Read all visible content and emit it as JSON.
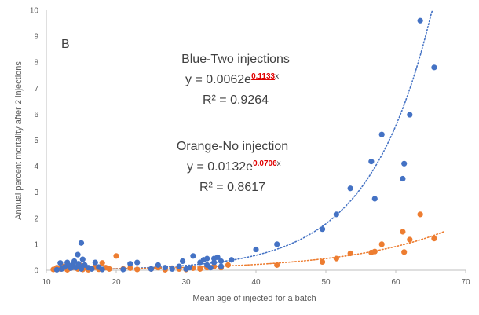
{
  "chart_data": {
    "type": "scatter",
    "panel_label": "B",
    "xlabel": "Mean age of injected for a batch",
    "ylabel": "Annual percent mortality after 2 injections",
    "xlim": [
      10,
      70
    ],
    "ylim": [
      0,
      10
    ],
    "x_ticks": [
      "10",
      "20",
      "30",
      "40",
      "50",
      "60",
      "70"
    ],
    "y_ticks": [
      "0",
      "1",
      "2",
      "3",
      "4",
      "5",
      "6",
      "7",
      "8",
      "9",
      "10"
    ],
    "grid": false,
    "series": [
      {
        "color": "#4472c4",
        "trend": {
          "type": "exponential",
          "a": 0.0062,
          "b": 0.1133
        },
        "points": [
          [
            11.5,
            0.02
          ],
          [
            12.0,
            0.28
          ],
          [
            12.2,
            0.05
          ],
          [
            12.6,
            0.12
          ],
          [
            13.0,
            0.3
          ],
          [
            13.2,
            0.18
          ],
          [
            13.5,
            0.08
          ],
          [
            13.8,
            0.22
          ],
          [
            14.0,
            0.35
          ],
          [
            14.2,
            0.1
          ],
          [
            14.5,
            0.6
          ],
          [
            14.6,
            0.25
          ],
          [
            14.8,
            0.15
          ],
          [
            15.0,
            0.05
          ],
          [
            15.0,
            1.05
          ],
          [
            15.2,
            0.42
          ],
          [
            15.5,
            0.2
          ],
          [
            16.0,
            0.1
          ],
          [
            16.5,
            0.05
          ],
          [
            17.0,
            0.3
          ],
          [
            17.5,
            0.12
          ],
          [
            18.0,
            0.03
          ],
          [
            21.0,
            0.03
          ],
          [
            22.0,
            0.25
          ],
          [
            23.0,
            0.3
          ],
          [
            25.0,
            0.05
          ],
          [
            26.0,
            0.2
          ],
          [
            27.0,
            0.1
          ],
          [
            28.0,
            0.05
          ],
          [
            29.0,
            0.15
          ],
          [
            29.5,
            0.35
          ],
          [
            30.0,
            0.05
          ],
          [
            30.5,
            0.1
          ],
          [
            31.0,
            0.55
          ],
          [
            32.0,
            0.3
          ],
          [
            32.5,
            0.4
          ],
          [
            33.0,
            0.45
          ],
          [
            33.0,
            0.2
          ],
          [
            33.5,
            0.1
          ],
          [
            34.0,
            0.45
          ],
          [
            34.0,
            0.3
          ],
          [
            34.5,
            0.5
          ],
          [
            35.0,
            0.35
          ],
          [
            35.0,
            0.15
          ],
          [
            36.5,
            0.4
          ],
          [
            40.0,
            0.8
          ],
          [
            43.0,
            1.0
          ],
          [
            49.5,
            1.58
          ],
          [
            51.5,
            2.15
          ],
          [
            53.5,
            3.15
          ],
          [
            56.5,
            4.18
          ],
          [
            57.0,
            2.75
          ],
          [
            58.0,
            5.22
          ],
          [
            61.0,
            3.52
          ],
          [
            61.2,
            4.1
          ],
          [
            62.0,
            5.98
          ],
          [
            63.5,
            9.6
          ],
          [
            65.5,
            7.8
          ]
        ]
      },
      {
        "color": "#ed7d31",
        "trend": {
          "type": "exponential",
          "a": 0.0132,
          "b": 0.0706
        },
        "points": [
          [
            11.0,
            0.03
          ],
          [
            11.5,
            0.1
          ],
          [
            12.0,
            0.05
          ],
          [
            12.5,
            0.15
          ],
          [
            13.0,
            0.02
          ],
          [
            13.5,
            0.08
          ],
          [
            14.0,
            0.12
          ],
          [
            14.5,
            0.05
          ],
          [
            15.0,
            0.18
          ],
          [
            15.2,
            0.03
          ],
          [
            15.5,
            0.1
          ],
          [
            16.0,
            0.02
          ],
          [
            16.5,
            0.06
          ],
          [
            17.0,
            0.12
          ],
          [
            17.5,
            0.04
          ],
          [
            18.0,
            0.28
          ],
          [
            18.5,
            0.1
          ],
          [
            19.0,
            0.05
          ],
          [
            20.0,
            0.55
          ],
          [
            21.0,
            0.05
          ],
          [
            22.0,
            0.08
          ],
          [
            23.0,
            0.03
          ],
          [
            25.0,
            0.05
          ],
          [
            26.0,
            0.1
          ],
          [
            27.0,
            0.02
          ],
          [
            28.0,
            0.08
          ],
          [
            29.0,
            0.05
          ],
          [
            30.0,
            0.03
          ],
          [
            31.0,
            0.08
          ],
          [
            32.0,
            0.05
          ],
          [
            33.0,
            0.1
          ],
          [
            34.0,
            0.15
          ],
          [
            35.0,
            0.1
          ],
          [
            36.0,
            0.2
          ],
          [
            43.0,
            0.2
          ],
          [
            49.5,
            0.32
          ],
          [
            51.5,
            0.45
          ],
          [
            53.5,
            0.65
          ],
          [
            56.5,
            0.68
          ],
          [
            57.0,
            0.72
          ],
          [
            58.0,
            1.0
          ],
          [
            61.0,
            1.48
          ],
          [
            61.2,
            0.7
          ],
          [
            62.0,
            1.18
          ],
          [
            63.5,
            2.15
          ],
          [
            65.5,
            1.22
          ]
        ]
      }
    ],
    "annotations": [
      {
        "lines": [
          "Blue-Two injections",
          "y = 0.0062e",
          "R² = 0.9264"
        ],
        "exponent": "0.1133",
        "var": "x"
      },
      {
        "lines": [
          "Orange-No injection",
          "y = 0.0132e",
          "R² = 0.8617"
        ],
        "exponent": "0.0706",
        "var": "x"
      }
    ]
  }
}
